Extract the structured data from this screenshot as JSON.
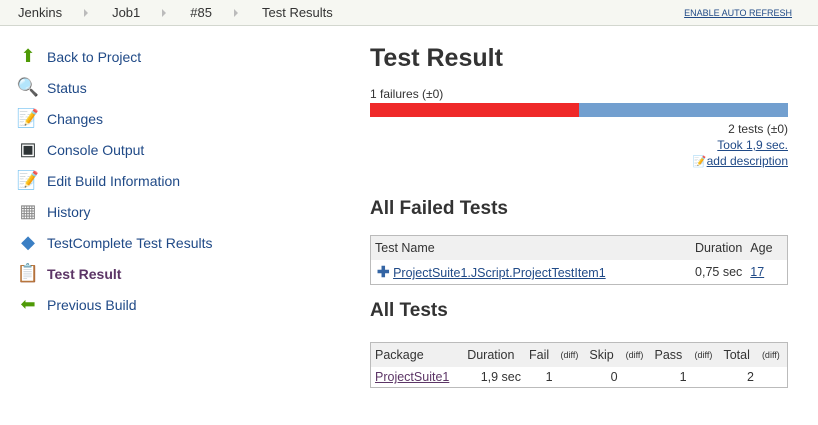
{
  "breadcrumb": [
    "Jenkins",
    "Job1",
    "#85",
    "Test Results"
  ],
  "auto_refresh": "ENABLE AUTO REFRESH",
  "sidebar": [
    {
      "label": "Back to Project",
      "icon": "up-arrow-icon",
      "glyph": "⬆",
      "color": "#4e9a06"
    },
    {
      "label": "Status",
      "icon": "magnifier-icon",
      "glyph": "🔍",
      "color": "#3465a4"
    },
    {
      "label": "Changes",
      "icon": "notepad-icon",
      "glyph": "📝",
      "color": "#c4a000"
    },
    {
      "label": "Console Output",
      "icon": "terminal-icon",
      "glyph": "▣",
      "color": "#2e3436"
    },
    {
      "label": "Edit Build Information",
      "icon": "notepad-icon",
      "glyph": "📝",
      "color": "#c4a000"
    },
    {
      "label": "History",
      "icon": "history-chart-icon",
      "glyph": "▦",
      "color": "#888"
    },
    {
      "label": "TestComplete Test Results",
      "icon": "testcomplete-icon",
      "glyph": "◆",
      "color": "#3b7fc4"
    },
    {
      "label": "Test Result",
      "icon": "clipboard-icon",
      "glyph": "📋",
      "color": "#a57c3a",
      "current": true
    },
    {
      "label": "Previous Build",
      "icon": "left-arrow-icon",
      "glyph": "⬅",
      "color": "#4e9a06"
    }
  ],
  "main": {
    "title": "Test Result",
    "failures": "1 failures (±0)",
    "fail_fraction": 0.5,
    "colors": {
      "fail": "#ef2929",
      "pass": "#729fcf"
    },
    "tests": "2 tests (±0)",
    "took": "Took 1,9 sec.",
    "add_description": "add description",
    "failed_heading": "All Failed Tests",
    "failed_headers": [
      "Test Name",
      "Duration",
      "Age"
    ],
    "failed_rows": [
      {
        "name": "ProjectSuite1.JScript.ProjectTestItem1",
        "duration": "0,75 sec",
        "age": "17"
      }
    ],
    "all_heading": "All Tests",
    "all_headers": [
      "Package",
      "Duration",
      "Fail",
      "(diff)",
      "Skip",
      "(diff)",
      "Pass",
      "(diff)",
      "Total",
      "(diff)"
    ],
    "all_rows": [
      {
        "package": "ProjectSuite1",
        "duration": "1,9 sec",
        "fail": "1",
        "skip": "0",
        "pass": "1",
        "total": "2"
      }
    ]
  }
}
